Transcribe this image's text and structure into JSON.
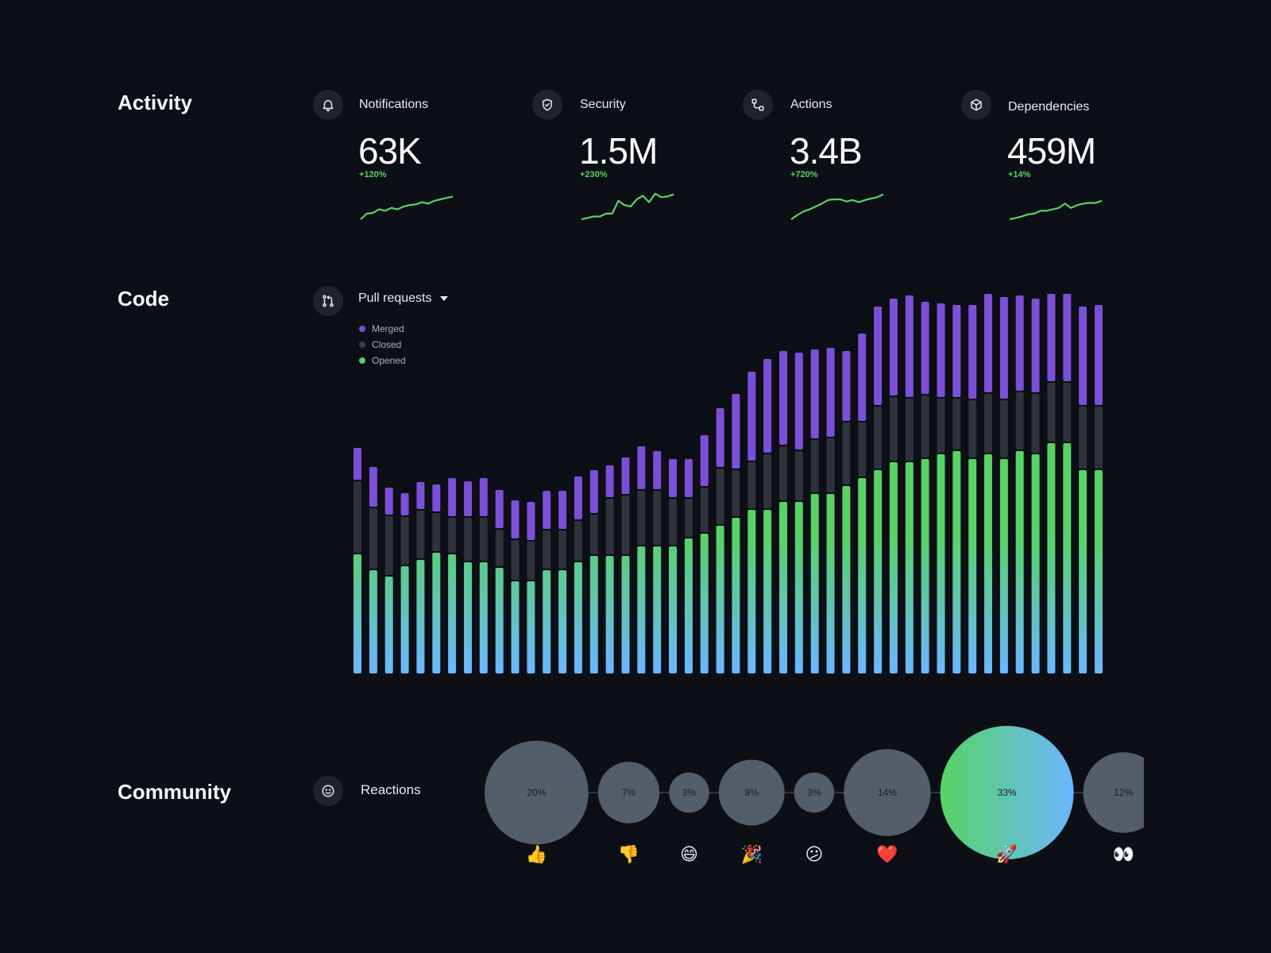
{
  "sections": {
    "activity": "Activity",
    "code": "Code",
    "community": "Community"
  },
  "colors": {
    "merged": "#7b4fd8",
    "closed": "#2d323b",
    "opened_top": "#56d364",
    "opened_bottom": "#6cb6ff",
    "bubble": "#545d6a",
    "positive": "#56d364"
  },
  "stats": [
    {
      "label": "Notifications",
      "value": "63K",
      "delta": "+120%",
      "icon": "bell-icon",
      "spark": [
        2,
        10,
        11,
        16,
        14,
        18,
        16,
        20,
        22,
        23,
        26,
        24,
        28,
        30,
        32,
        34
      ]
    },
    {
      "label": "Security",
      "value": "1.5M",
      "delta": "+230%",
      "icon": "shield-icon",
      "spark": [
        2,
        4,
        6,
        6,
        10,
        10,
        28,
        22,
        20,
        30,
        35,
        26,
        38,
        33,
        34,
        37
      ]
    },
    {
      "label": "Actions",
      "value": "3.4B",
      "delta": "+720%",
      "icon": "workflow-icon",
      "spark": [
        2,
        8,
        13,
        16,
        20,
        24,
        29,
        30,
        30,
        27,
        29,
        26,
        29,
        31,
        33,
        37
      ]
    },
    {
      "label": "Dependencies",
      "value": "459M",
      "delta": "+14%",
      "icon": "package-icon",
      "spark": [
        2,
        4,
        6,
        9,
        10,
        14,
        14,
        16,
        18,
        24,
        18,
        22,
        24,
        25,
        25,
        28
      ]
    }
  ],
  "code": {
    "dropdown_label": "Pull requests",
    "legend": [
      "Merged",
      "Closed",
      "Opened"
    ]
  },
  "chart_data": {
    "type": "bar",
    "stacked": true,
    "title": "Pull requests",
    "series": [
      {
        "name": "Opened",
        "values": [
          150,
          130,
          122,
          135,
          143,
          152,
          150,
          140,
          140,
          133,
          116,
          116,
          130,
          130,
          140,
          148,
          148,
          148,
          160,
          160,
          160,
          170,
          176,
          186,
          196,
          206,
          206,
          216,
          216,
          226,
          226,
          236,
          246,
          256,
          266,
          266,
          270,
          276,
          280,
          270,
          276,
          270,
          280,
          276,
          290,
          290,
          256,
          256
        ]
      },
      {
        "name": "Closed",
        "values": [
          92,
          78,
          76,
          62,
          62,
          50,
          46,
          56,
          56,
          48,
          52,
          50,
          50,
          50,
          52,
          52,
          72,
          76,
          70,
          70,
          60,
          50,
          58,
          72,
          60,
          60,
          70,
          70,
          64,
          68,
          70,
          80,
          70,
          80,
          82,
          80,
          80,
          70,
          66,
          74,
          76,
          74,
          74,
          76,
          76,
          76,
          80,
          80
        ]
      },
      {
        "name": "Merged",
        "values": [
          42,
          52,
          36,
          30,
          36,
          36,
          50,
          46,
          50,
          50,
          50,
          50,
          50,
          50,
          56,
          56,
          42,
          48,
          56,
          50,
          50,
          50,
          66,
          76,
          96,
          114,
          120,
          120,
          124,
          114,
          114,
          90,
          112,
          126,
          124,
          130,
          118,
          120,
          118,
          120,
          126,
          130,
          122,
          120,
          120,
          124,
          126,
          128
        ]
      }
    ],
    "ylim": [
      0,
      470
    ],
    "grid": false,
    "legend": "top-left"
  },
  "community": {
    "label": "Reactions",
    "reactions": [
      {
        "emoji": "👍",
        "name": "thumbs-up",
        "percent": 20,
        "label": "20%"
      },
      {
        "emoji": "👎",
        "name": "thumbs-down",
        "percent": 7,
        "label": "7%"
      },
      {
        "emoji": "😄",
        "name": "laugh",
        "percent": 3,
        "label": "3%"
      },
      {
        "emoji": "🎉",
        "name": "hooray",
        "percent": 8,
        "label": "8%"
      },
      {
        "emoji": "😕",
        "name": "confused",
        "percent": 3,
        "label": "3%"
      },
      {
        "emoji": "❤️",
        "name": "heart",
        "percent": 14,
        "label": "14%"
      },
      {
        "emoji": "🚀",
        "name": "rocket",
        "percent": 33,
        "label": "33%"
      },
      {
        "emoji": "👀",
        "name": "eyes",
        "percent": 12,
        "label": "12%"
      }
    ]
  }
}
